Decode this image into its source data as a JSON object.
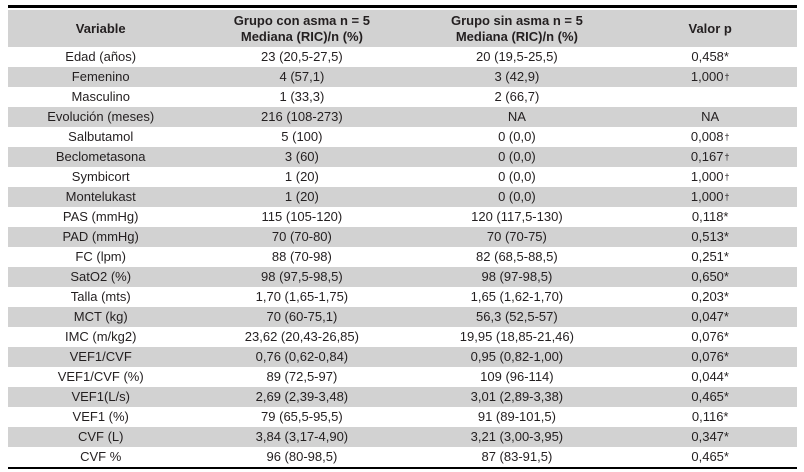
{
  "table": {
    "columns": [
      {
        "id": "variable",
        "line1": "Variable",
        "line2": ""
      },
      {
        "id": "grupo-con-asma",
        "line1": "Grupo con asma n = 5",
        "line2": "Mediana (RIC)/n (%)"
      },
      {
        "id": "grupo-sin-asma",
        "line1": "Grupo sin asma n = 5",
        "line2": "Mediana (RIC)/n (%)"
      },
      {
        "id": "valor-p",
        "line1": "Valor p",
        "line2": ""
      }
    ],
    "rows": [
      [
        "Edad (años)",
        "23 (20,5-27,5)",
        "20 (19,5-25,5)",
        "0,458*"
      ],
      [
        "Femenino",
        "4 (57,1)",
        "3 (42,9)",
        "1,000†"
      ],
      [
        "Masculino",
        "1 (33,3)",
        "2 (66,7)",
        ""
      ],
      [
        "Evolución (meses)",
        "216 (108-273)",
        "NA",
        "NA"
      ],
      [
        "Salbutamol",
        "5 (100)",
        "0 (0,0)",
        "0,008†"
      ],
      [
        "Beclometasona",
        "3 (60)",
        "0 (0,0)",
        "0,167†"
      ],
      [
        "Symbicort",
        "1 (20)",
        "0 (0,0)",
        "1,000†"
      ],
      [
        "Montelukast",
        "1 (20)",
        "0 (0,0)",
        "1,000†"
      ],
      [
        "PAS (mmHg)",
        "115 (105-120)",
        "120 (117,5-130)",
        "0,118*"
      ],
      [
        "PAD (mmHg)",
        "70 (70-80)",
        "70 (70-75)",
        "0,513*"
      ],
      [
        "FC (lpm)",
        "88 (70-98)",
        "82 (68,5-88,5)",
        "0,251*"
      ],
      [
        "SatO2 (%)",
        "98 (97,5-98,5)",
        "98 (97-98,5)",
        "0,650*"
      ],
      [
        "Talla (mts)",
        "1,70 (1,65-1,75)",
        "1,65 (1,62-1,70)",
        "0,203*"
      ],
      [
        "MCT (kg)",
        "70 (60-75,1)",
        "56,3 (52,5-57)",
        "0,047*"
      ],
      [
        "IMC (m/kg2)",
        "23,62 (20,43-26,85)",
        "19,95 (18,85-21,46)",
        "0,076*"
      ],
      [
        "VEF1/CVF",
        "0,76 (0,62-0,84)",
        "0,95 (0,82-1,00)",
        "0,076*"
      ],
      [
        "VEF1/CVF (%)",
        "89 (72,5-97)",
        "109 (96-114)",
        "0,044*"
      ],
      [
        "VEF1(L/s)",
        "2,69 (2,39-3,48)",
        "3,01 (2,89-3,38)",
        "0,465*"
      ],
      [
        "VEF1 (%)",
        "79 (65,5-95,5)",
        "91 (89-101,5)",
        "0,116*"
      ],
      [
        "CVF (L)",
        "3,84 (3,17-4,90)",
        "3,21 (3,00-3,95)",
        "0,347*"
      ],
      [
        "CVF %",
        "96 (80-98,5)",
        "87 (83-91,5)",
        "0,465*"
      ]
    ]
  },
  "colors": {
    "stripe": "#d2d2d2",
    "header_bg": "#d2d2d2",
    "text": "#231f20",
    "rule": "#000000"
  }
}
